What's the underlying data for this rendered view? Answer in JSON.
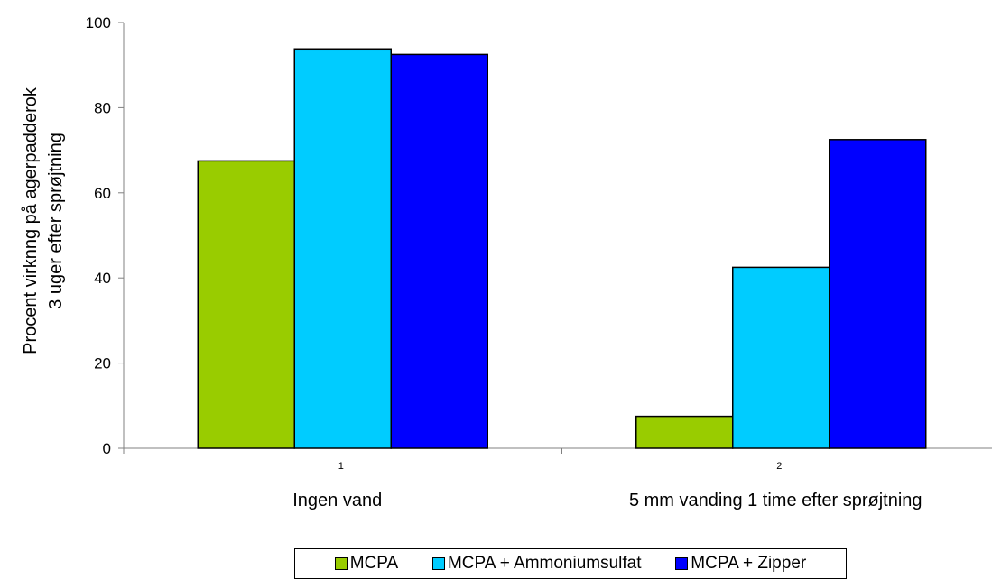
{
  "chart_data": {
    "type": "bar",
    "ylabel_lines": [
      "Procent virknng på agerpadderok",
      "3 uger efter sprøjtning"
    ],
    "ylim": [
      0,
      100
    ],
    "yticks": [
      0,
      20,
      40,
      60,
      80,
      100
    ],
    "categories": [
      {
        "number": "1",
        "name": "Ingen vand"
      },
      {
        "number": "2",
        "name": "5 mm vanding 1 time efter sprøjtning"
      }
    ],
    "series": [
      {
        "name": "MCPA",
        "color": "#99cc00",
        "values": [
          67.5,
          7.5
        ]
      },
      {
        "name": "MCPA + Ammoniumsulfat",
        "color": "#00ccff",
        "values": [
          93.8,
          42.5
        ]
      },
      {
        "name": "MCPA + Zipper",
        "color": "#0000ff",
        "values": [
          92.5,
          72.5
        ]
      }
    ],
    "grid": false,
    "legend_position": "bottom"
  }
}
